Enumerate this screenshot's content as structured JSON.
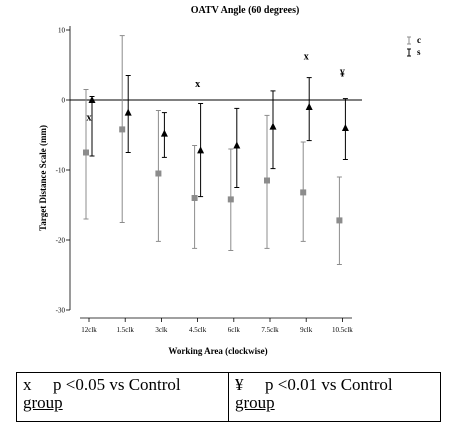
{
  "chart_data": {
    "type": "scatter",
    "title": "OATV Angle (60 degrees)",
    "xlabel": "Working Area (clockwise)",
    "ylabel": "Target Distance Scale (mm)",
    "categories": [
      "12clk",
      "1.5clk",
      "3clk",
      "4.5clk",
      "6clk",
      "7.5clk",
      "9clk",
      "10.5clk"
    ],
    "ylim": [
      -32,
      11
    ],
    "yticks": [
      10,
      0,
      -10,
      -20,
      -30
    ],
    "ytick_labels": [
      "10",
      "0",
      "-10",
      "-20",
      "-30"
    ],
    "reference_line_y": 0,
    "grid": false,
    "legend_position": "top-right",
    "series": [
      {
        "name": "c",
        "marker": "square",
        "color": "#8c8c8c",
        "values": [
          -7.5,
          -4.2,
          -10.5,
          -14,
          -14.2,
          -11.5,
          -13.2,
          -17.2
        ],
        "lower": [
          -17,
          -17.5,
          -20.2,
          -21.2,
          -21.5,
          -21.2,
          -20.2,
          -23.5
        ],
        "upper": [
          1.5,
          9.2,
          -1.5,
          -6.5,
          -7,
          -2.2,
          -6,
          -11
        ]
      },
      {
        "name": "s",
        "marker": "triangle",
        "color": "#000000",
        "values": [
          0,
          -1.8,
          -4.8,
          -7.2,
          -6.5,
          -3.8,
          -1,
          -4
        ],
        "lower": [
          -8,
          -7.5,
          -8.2,
          -13.8,
          -12.5,
          -9.8,
          -5.8,
          -8.5
        ],
        "upper": [
          0.5,
          3.5,
          -1.8,
          -0.5,
          -1.2,
          1.3,
          3.2,
          0.2
        ]
      }
    ],
    "annotations": [
      {
        "text": "x",
        "category": "12clk",
        "y": -2.5
      },
      {
        "text": "x",
        "category": "4.5clk",
        "y": 2.3
      },
      {
        "text": "x",
        "category": "9clk",
        "y": 6.2
      },
      {
        "text": "¥",
        "category": "10.5clk",
        "y": 3.8
      }
    ]
  },
  "footnote": {
    "left": {
      "mark": "x",
      "text": "p <0.05 vs Control",
      "text2": "group"
    },
    "right": {
      "mark": "¥",
      "text": "p <0.01 vs Control",
      "text2": "group"
    }
  }
}
